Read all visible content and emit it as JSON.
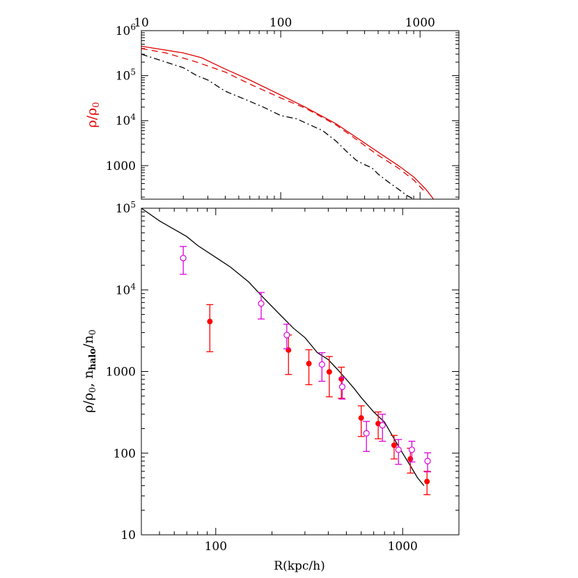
{
  "chart_data": [
    {
      "type": "line",
      "id": "top",
      "xscale": "log",
      "yscale": "log",
      "xlim": [
        10,
        1900
      ],
      "ylim": [
        180,
        1000000
      ],
      "xticks": [
        {
          "value": 10,
          "label": "10"
        },
        {
          "value": 100,
          "label": "100"
        },
        {
          "value": 1000,
          "label": "1000"
        }
      ],
      "yticks": [
        {
          "value": 1000,
          "label": "1000",
          "sup": ""
        },
        {
          "value": 10000,
          "label": "10",
          "sup": "4"
        },
        {
          "value": 100000,
          "label": "10",
          "sup": "5"
        },
        {
          "value": 1000000,
          "label": "10",
          "sup": "6"
        }
      ],
      "ylabel": {
        "main": "ρ/ρ",
        "sub": "0"
      },
      "ylabel_color": "#e00000",
      "series": [
        {
          "style": "solid",
          "color": "#e00000",
          "x": [
            10,
            20,
            27,
            40,
            60,
            100,
            150,
            250,
            350,
            500,
            700,
            900,
            1100,
            1250
          ],
          "y": [
            450000,
            320000,
            250000,
            140000,
            80000,
            37000,
            20000,
            8500,
            4200,
            2000,
            1000,
            560,
            300,
            180
          ]
        },
        {
          "style": "dashed",
          "color": "#e00000",
          "x": [
            10,
            15,
            25,
            40,
            60,
            100,
            150,
            250,
            350,
            500,
            700,
            900,
            1100
          ],
          "y": [
            400000,
            320000,
            200000,
            120000,
            65000,
            32000,
            19000,
            8000,
            3800,
            1700,
            880,
            480,
            250
          ]
        },
        {
          "style": "dash-dot",
          "color": "#000000",
          "x": [
            10,
            15,
            20,
            25,
            30,
            40,
            55,
            75,
            100,
            130,
            160,
            200,
            250,
            300,
            350,
            400,
            450,
            500,
            600,
            700,
            800,
            900
          ],
          "y": [
            300000,
            200000,
            150000,
            100000,
            80000,
            45000,
            30000,
            20000,
            13000,
            11000,
            8200,
            6000,
            3500,
            2000,
            1300,
            1050,
            900,
            650,
            420,
            300,
            220,
            180
          ]
        }
      ]
    },
    {
      "type": "scatter",
      "id": "bottom",
      "xscale": "log",
      "yscale": "log",
      "xlim": [
        40,
        2000
      ],
      "ylim": [
        10,
        100000
      ],
      "xticks": [
        {
          "value": 100,
          "label": "100"
        },
        {
          "value": 1000,
          "label": "1000"
        }
      ],
      "yticks": [
        {
          "value": 10,
          "label": "10",
          "sup": ""
        },
        {
          "value": 100,
          "label": "100",
          "sup": ""
        },
        {
          "value": 1000,
          "label": "1000",
          "sup": ""
        },
        {
          "value": 10000,
          "label": "10",
          "sup": "4"
        },
        {
          "value": 100000,
          "label": "10",
          "sup": "5"
        }
      ],
      "xlabel": "R(kpc/h)",
      "ylabel": {
        "p1": "ρ/ρ",
        "s1": "0",
        "p2": ", n",
        "s2": "halo",
        "p3": "/n",
        "s3": "0"
      },
      "line": {
        "color": "#000000",
        "x": [
          40,
          50,
          60,
          70,
          80,
          100,
          120,
          150,
          180,
          220,
          260,
          300,
          350,
          400,
          450,
          500,
          550,
          600,
          700,
          800,
          900,
          1000,
          1100,
          1200,
          1300
        ],
        "y": [
          100000,
          70000,
          55000,
          45000,
          35000,
          25000,
          19000,
          12500,
          8000,
          5000,
          3400,
          2600,
          1700,
          1400,
          1050,
          800,
          620,
          480,
          320,
          240,
          150,
          100,
          70,
          50,
          40
        ]
      },
      "filled_series": {
        "color": "#ff0000",
        "points": [
          {
            "x": 93,
            "y": 4100,
            "lo": 1750,
            "hi": 6600
          },
          {
            "x": 245,
            "y": 1830,
            "lo": 920,
            "hi": 2800
          },
          {
            "x": 315,
            "y": 1250,
            "lo": 690,
            "hi": 1850
          },
          {
            "x": 405,
            "y": 990,
            "lo": 490,
            "hi": 1530
          },
          {
            "x": 470,
            "y": 810,
            "lo": 470,
            "hi": 1130
          },
          {
            "x": 600,
            "y": 270,
            "lo": 160,
            "hi": 380
          },
          {
            "x": 740,
            "y": 230,
            "lo": 150,
            "hi": 320
          },
          {
            "x": 900,
            "y": 125,
            "lo": 85,
            "hi": 165
          },
          {
            "x": 1100,
            "y": 85,
            "lo": 57,
            "hi": 115
          },
          {
            "x": 1350,
            "y": 45,
            "lo": 31,
            "hi": 60
          }
        ]
      },
      "open_series": {
        "color": "#dd00dd",
        "points": [
          {
            "x": 67,
            "y": 24500,
            "lo": 15500,
            "hi": 34000
          },
          {
            "x": 175,
            "y": 6800,
            "lo": 4400,
            "hi": 9300
          },
          {
            "x": 240,
            "y": 2800,
            "lo": 1900,
            "hi": 3800
          },
          {
            "x": 370,
            "y": 1220,
            "lo": 760,
            "hi": 1700
          },
          {
            "x": 475,
            "y": 650,
            "lo": 460,
            "hi": 840
          },
          {
            "x": 640,
            "y": 175,
            "lo": 105,
            "hi": 245
          },
          {
            "x": 780,
            "y": 220,
            "lo": 140,
            "hi": 300
          },
          {
            "x": 950,
            "y": 110,
            "lo": 73,
            "hi": 147
          },
          {
            "x": 1120,
            "y": 110,
            "lo": 78,
            "hi": 140
          },
          {
            "x": 1360,
            "y": 80,
            "lo": 59,
            "hi": 101
          }
        ]
      }
    }
  ]
}
